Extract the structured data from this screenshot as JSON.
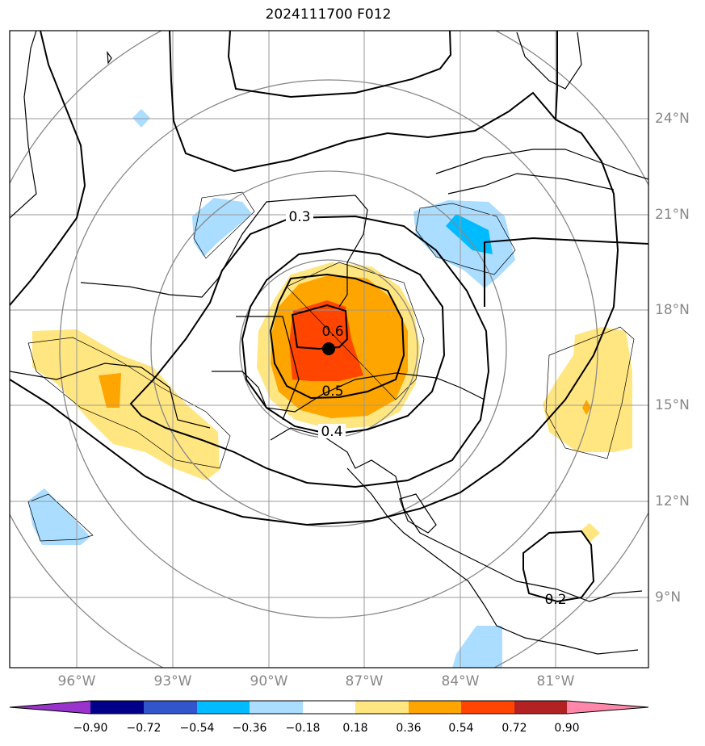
{
  "title": "2024111700 F012",
  "map": {
    "lon_labels": [
      "96°W",
      "93°W",
      "90°W",
      "87°W",
      "84°W",
      "81°W"
    ],
    "lat_labels": [
      "24°N",
      "21°N",
      "18°N",
      "15°N",
      "12°N",
      "9°N"
    ],
    "contour_labels": [
      "0.3",
      "0.6",
      "0.5",
      "0.4",
      "0.2"
    ]
  },
  "colorbar": {
    "ticks": [
      "−0.90",
      "−0.72",
      "−0.54",
      "−0.36",
      "−0.18",
      "0.18",
      "0.36",
      "0.54",
      "0.72",
      "0.90"
    ],
    "colors": [
      "#9933cc",
      "#000088",
      "#3355cc",
      "#00bbff",
      "#aaddff",
      "#ffffff",
      "#ffe680",
      "#ffa500",
      "#ff4500",
      "#b22222",
      "#ff88aa"
    ]
  }
}
